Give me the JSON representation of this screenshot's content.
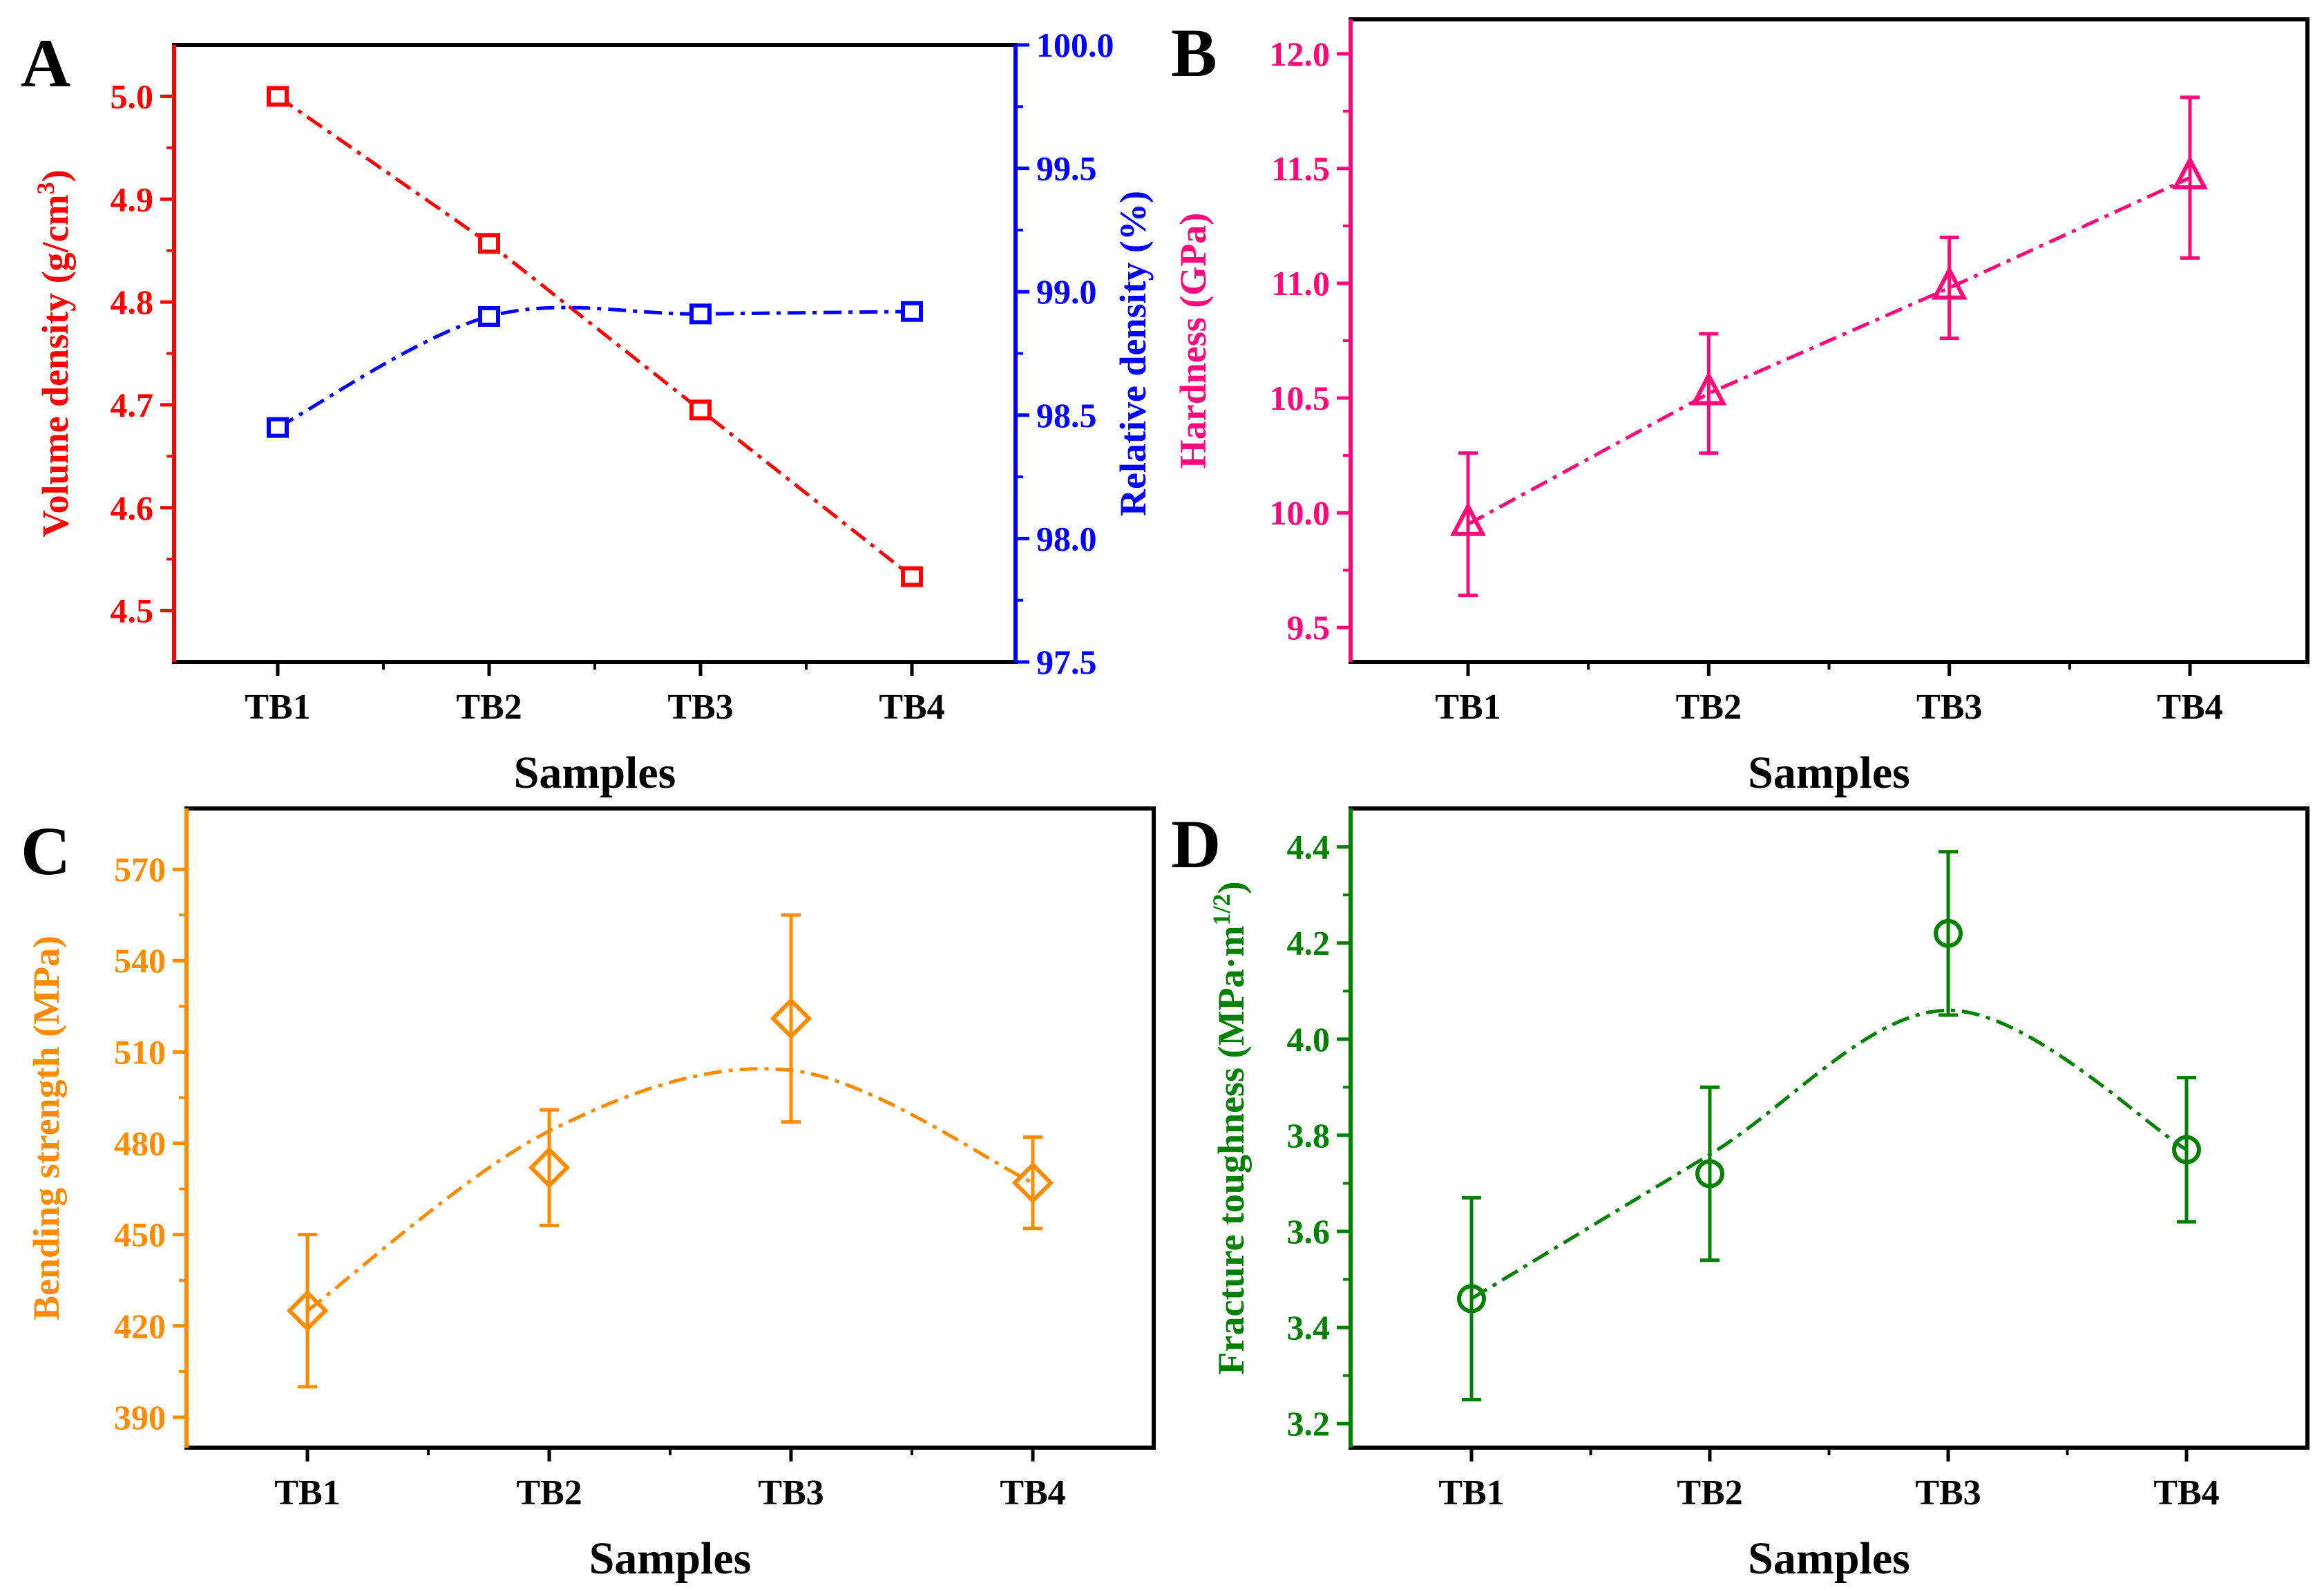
{
  "figure": {
    "panels": [
      "A",
      "B",
      "C",
      "D"
    ]
  },
  "chart_data": [
    {
      "id": "A",
      "panel_label": "A",
      "type": "line",
      "categories": [
        "TB1",
        "TB2",
        "TB3",
        "TB4"
      ],
      "xlabel": "Samples",
      "series": [
        {
          "name": "Volume density",
          "axis": "left",
          "color": "#ff0000",
          "marker": "square-open",
          "line_style": "dash-dot",
          "values": [
            5.0,
            4.857,
            4.695,
            4.533
          ]
        },
        {
          "name": "Relative density",
          "axis": "right",
          "color": "#0000ff",
          "marker": "square-open",
          "line_style": "dash-dot-smooth",
          "values": [
            98.45,
            98.9,
            98.91,
            98.92
          ]
        }
      ],
      "y_left": {
        "label": "Volume density (g/cm",
        "label_sup": "3",
        "label_end": ")",
        "lim": [
          4.45,
          5.05
        ],
        "ticks": [
          "4.5",
          "4.6",
          "4.7",
          "4.8",
          "4.9",
          "5.0"
        ]
      },
      "y_right": {
        "label": "Relative density (%)",
        "lim": [
          97.5,
          100.0
        ],
        "ticks": [
          "97.5",
          "98.0",
          "98.5",
          "99.0",
          "99.5",
          "100.0"
        ]
      }
    },
    {
      "id": "B",
      "panel_label": "B",
      "type": "line",
      "categories": [
        "TB1",
        "TB2",
        "TB3",
        "TB4"
      ],
      "xlabel": "Samples",
      "ylabel": "Hardness (GPa)",
      "color": "#ff0a7a",
      "marker": "triangle-open",
      "line_style": "dash-dot",
      "values": [
        9.95,
        10.52,
        10.98,
        11.46
      ],
      "error": [
        0.31,
        0.26,
        0.22,
        0.35
      ],
      "ylim": [
        9.35,
        12.15
      ],
      "ticks": [
        "9.5",
        "10.0",
        "10.5",
        "11.0",
        "11.5",
        "12.0"
      ]
    },
    {
      "id": "C",
      "panel_label": "C",
      "type": "line",
      "categories": [
        "TB1",
        "TB2",
        "TB3",
        "TB4"
      ],
      "xlabel": "Samples",
      "ylabel": "Bending strength (MPa)",
      "color": "#ff8c00",
      "marker": "diamond-open",
      "line_style": "dash-dot-smooth",
      "values": [
        425,
        472,
        521,
        467
      ],
      "error": [
        25,
        19,
        34,
        15
      ],
      "fit": [
        425,
        484,
        504,
        467
      ],
      "ylim": [
        380,
        590
      ],
      "ticks": [
        "390",
        "420",
        "450",
        "480",
        "510",
        "540",
        "570"
      ]
    },
    {
      "id": "D",
      "panel_label": "D",
      "type": "line",
      "categories": [
        "TB1",
        "TB2",
        "TB3",
        "TB4"
      ],
      "xlabel": "Samples",
      "ylabel": "Fracture toughness (MPa·m",
      "ylabel_sup": "1/2",
      "ylabel_end": ")",
      "color": "#008000",
      "marker": "circle-open",
      "line_style": "dash-dot-smooth",
      "values": [
        3.46,
        3.72,
        4.22,
        3.77
      ],
      "error": [
        0.21,
        0.18,
        0.17,
        0.15
      ],
      "fit": [
        3.46,
        3.76,
        4.06,
        3.77
      ],
      "ylim": [
        3.15,
        4.48
      ],
      "ticks": [
        "3.2",
        "3.4",
        "3.6",
        "3.8",
        "4.0",
        "4.2",
        "4.4"
      ]
    }
  ]
}
